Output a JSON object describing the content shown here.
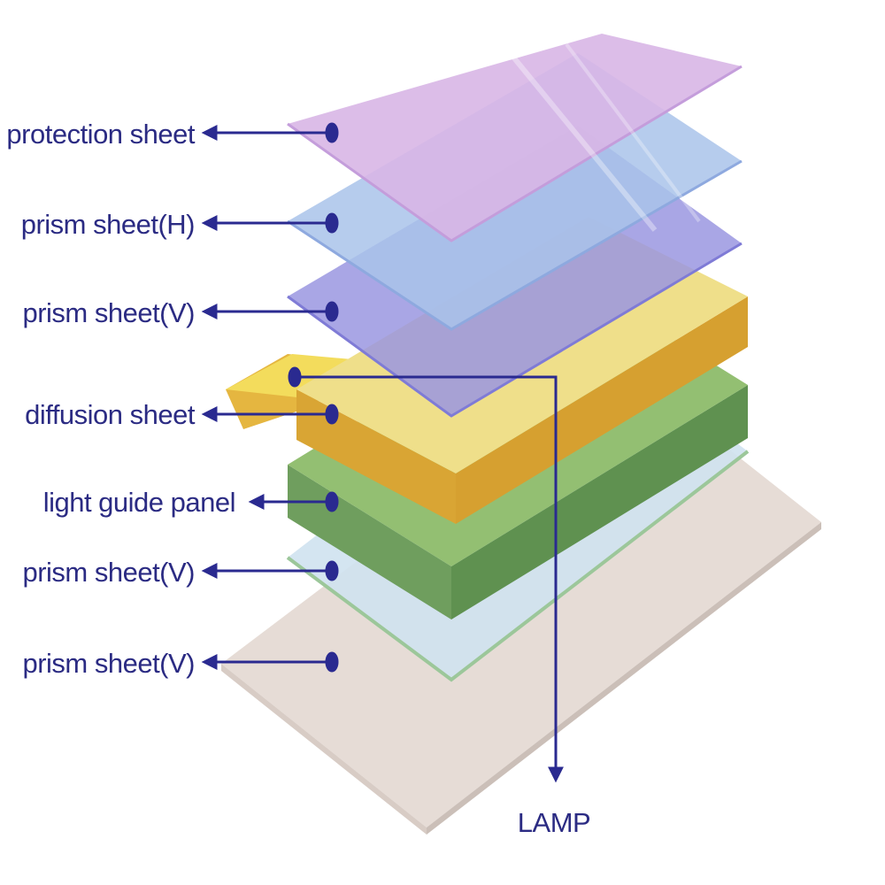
{
  "labels": [
    "protection sheet",
    "prism sheet(H)",
    "prism sheet(V)",
    "diffusion sheet",
    "light guide panel",
    "prism sheet(V)",
    "prism sheet(V)"
  ],
  "lamp_label": "LAMP",
  "colors": {
    "label_text": "#2b2b83",
    "leader_line": "#2a2a90",
    "protection_sheet": "#d9b8e6",
    "prism_sheet_h": "#b4cbeb",
    "prism_sheet_v_top": "#a9a6e6",
    "diffusion_sheet": "#efdf8a",
    "light_guide_panel": "#8fbb6f",
    "prism_sheet_v_bottom": "#cfe2ef",
    "base_sheet": "#e6dcd6"
  }
}
